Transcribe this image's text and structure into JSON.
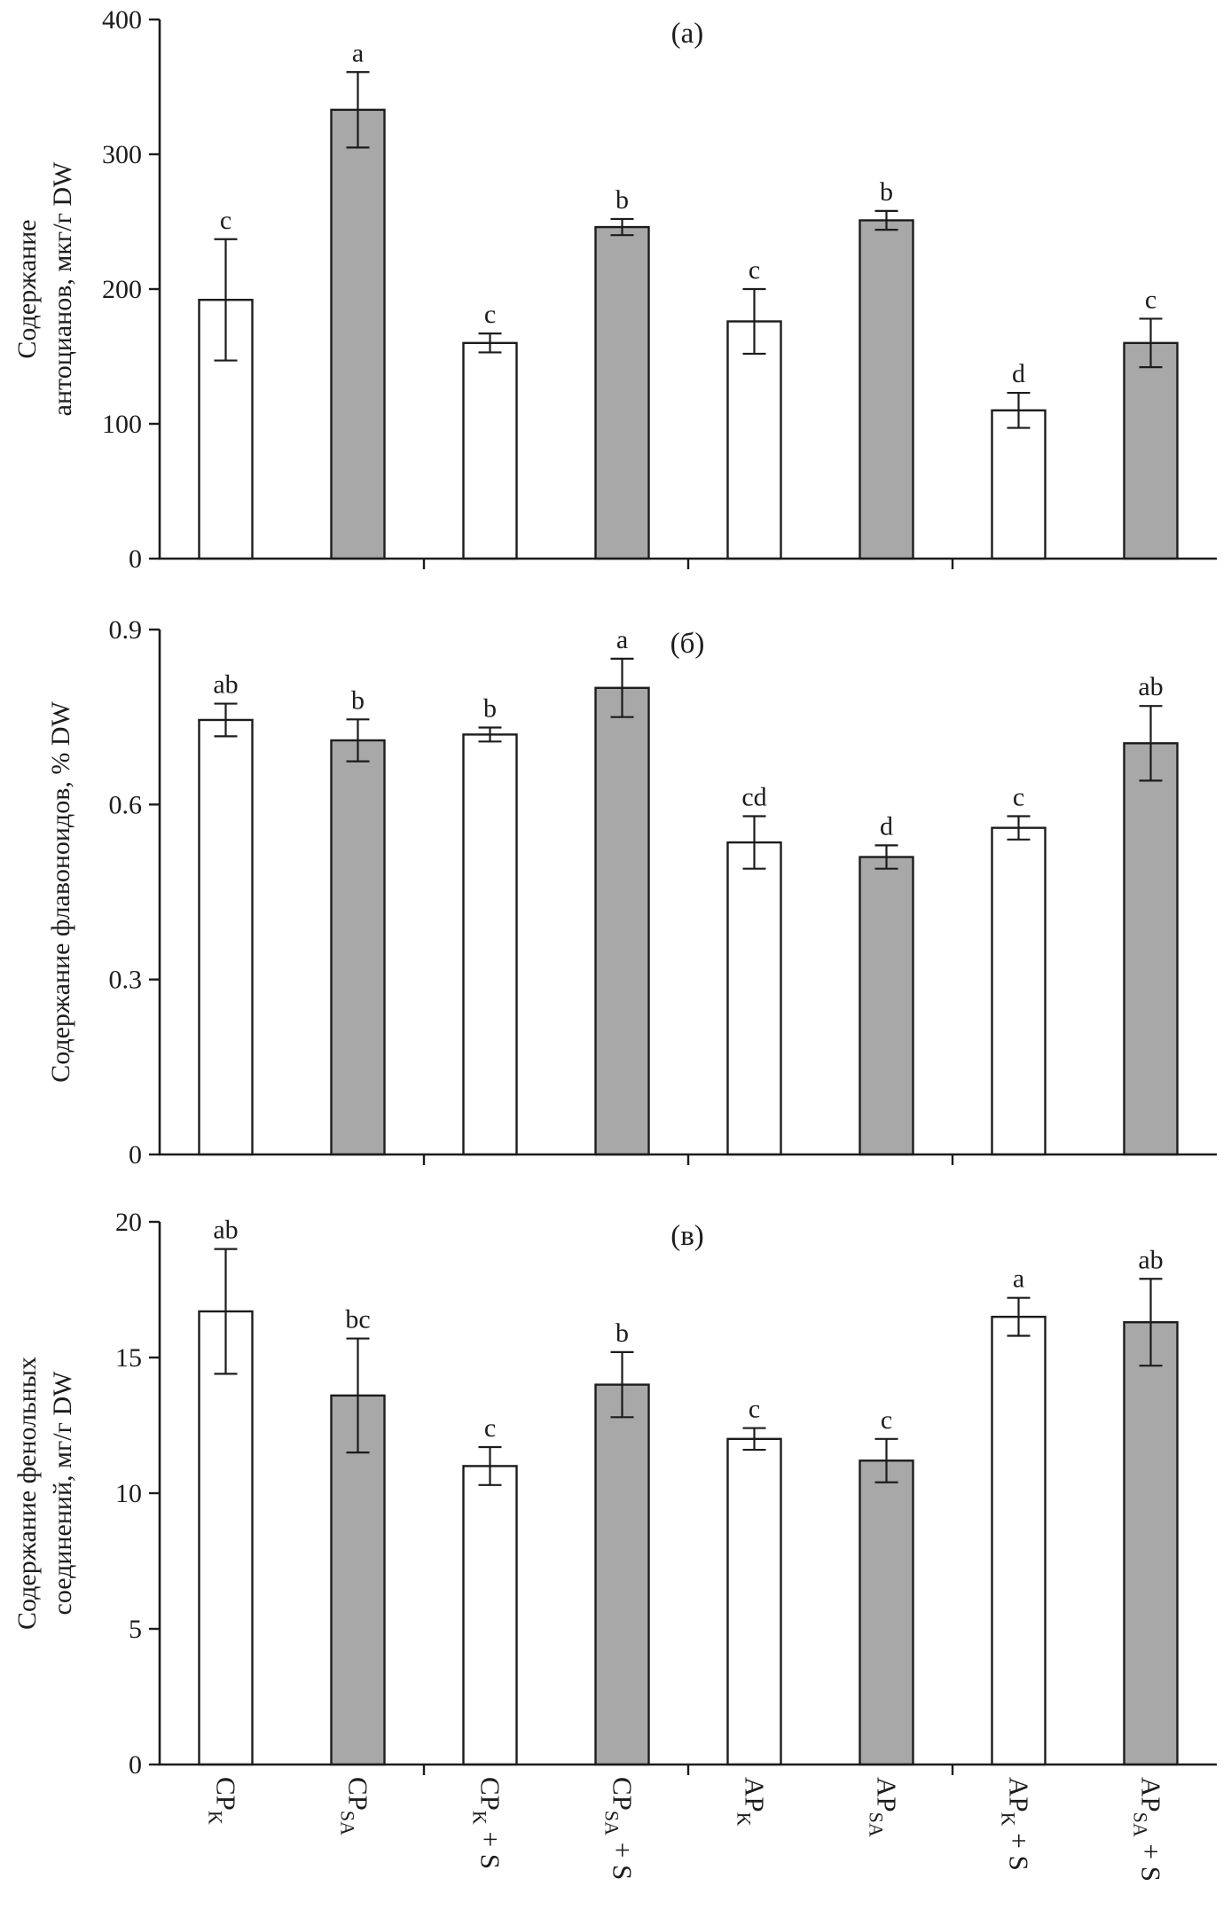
{
  "figure": {
    "background": "#ffffff",
    "colors": {
      "bar_white": "#ffffff",
      "bar_gray": "#a8a8a8",
      "line": "#1c1c1c",
      "text": "#1c1c1c"
    },
    "categories": [
      {
        "base": "CP",
        "sub": "K",
        "suffix": ""
      },
      {
        "base": "CP",
        "sub": "SA",
        "suffix": ""
      },
      {
        "base": "CP",
        "sub": "K",
        "suffix": " + S"
      },
      {
        "base": "CP",
        "sub": "SA",
        "suffix": " + S"
      },
      {
        "base": "AP",
        "sub": "K",
        "suffix": ""
      },
      {
        "base": "AP",
        "sub": "SA",
        "suffix": ""
      },
      {
        "base": "AP",
        "sub": "K",
        "suffix": " + S"
      },
      {
        "base": "AP",
        "sub": "SA",
        "suffix": " + S"
      }
    ]
  },
  "chart_data": [
    {
      "type": "bar",
      "panel_label": "(а)",
      "ylabel_lines": [
        "Содержание",
        "антоцианов, мкг/г DW"
      ],
      "ylim": [
        0,
        400
      ],
      "yticks": [
        0,
        100,
        200,
        300,
        400
      ],
      "ytick_labels": [
        "0",
        "100",
        "200",
        "300",
        "400"
      ],
      "values": [
        192,
        333,
        160,
        246,
        176,
        251,
        110,
        160
      ],
      "errors": [
        45,
        28,
        7,
        6,
        24,
        7,
        13,
        18
      ],
      "sig_letters": [
        "c",
        "a",
        "c",
        "b",
        "c",
        "b",
        "d",
        "c"
      ],
      "legend": "none",
      "grid": false
    },
    {
      "type": "bar",
      "panel_label": "(б)",
      "ylabel_lines": [
        "Содержание флавоноидов, % DW"
      ],
      "ylim": [
        0,
        0.9
      ],
      "yticks": [
        0,
        0.3,
        0.6,
        0.9
      ],
      "ytick_labels": [
        "0",
        "0.3",
        "0.6",
        "0.9"
      ],
      "values": [
        0.745,
        0.71,
        0.72,
        0.8,
        0.535,
        0.51,
        0.56,
        0.705
      ],
      "errors": [
        0.028,
        0.036,
        0.012,
        0.05,
        0.045,
        0.02,
        0.02,
        0.064
      ],
      "sig_letters": [
        "ab",
        "b",
        "b",
        "a",
        "cd",
        "d",
        "c",
        "ab"
      ],
      "legend": "none",
      "grid": false
    },
    {
      "type": "bar",
      "panel_label": "(в)",
      "ylabel_lines": [
        "Содержание фенольных",
        "соединений, мг/г DW"
      ],
      "ylim": [
        0,
        20
      ],
      "yticks": [
        0,
        5,
        10,
        15,
        20
      ],
      "ytick_labels": [
        "0",
        "5",
        "10",
        "15",
        "20"
      ],
      "values": [
        16.7,
        13.6,
        11.0,
        14.0,
        12.0,
        11.2,
        16.5,
        16.3
      ],
      "errors": [
        2.3,
        2.1,
        0.7,
        1.2,
        0.4,
        0.8,
        0.7,
        1.6
      ],
      "sig_letters": [
        "ab",
        "bc",
        "c",
        "b",
        "c",
        "c",
        "a",
        "ab"
      ],
      "legend": "none",
      "grid": false
    }
  ]
}
